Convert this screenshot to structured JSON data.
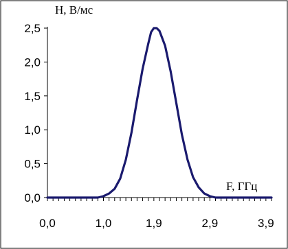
{
  "chart_data": {
    "type": "line",
    "title": "",
    "ylabel": "Н, В/мс",
    "xlabel": "F, ГГц",
    "xlim": [
      0,
      4.0
    ],
    "ylim": [
      0,
      2.5
    ],
    "x_ticks": [
      0.0,
      1.0,
      1.9,
      2.9,
      3.9
    ],
    "x_tick_labels": [
      "0,0",
      "1,0",
      "1,9",
      "2,9",
      "3,9"
    ],
    "y_ticks": [
      0.0,
      0.5,
      1.0,
      1.5,
      2.0,
      2.5
    ],
    "y_tick_labels": [
      "0,0",
      "0,5",
      "1,0",
      "1,5",
      "2,0",
      "2,5"
    ],
    "grid": false,
    "legend": "none",
    "line_color": "#1a1a6e",
    "series": [
      {
        "x": [
          0.0,
          0.5,
          0.9,
          1.0,
          1.1,
          1.2,
          1.3,
          1.4,
          1.5,
          1.6,
          1.7,
          1.8,
          1.85,
          1.9,
          1.95,
          2.0,
          2.1,
          2.2,
          2.3,
          2.4,
          2.5,
          2.6,
          2.7,
          2.8,
          2.9,
          3.0,
          3.1,
          3.5,
          4.0
        ],
        "y": [
          0.0,
          0.0,
          0.0,
          0.02,
          0.06,
          0.13,
          0.28,
          0.56,
          0.96,
          1.44,
          1.9,
          2.27,
          2.44,
          2.5,
          2.5,
          2.46,
          2.24,
          1.86,
          1.4,
          0.93,
          0.56,
          0.3,
          0.15,
          0.06,
          0.02,
          0.0,
          0.0,
          0.0,
          0.0
        ]
      }
    ]
  }
}
